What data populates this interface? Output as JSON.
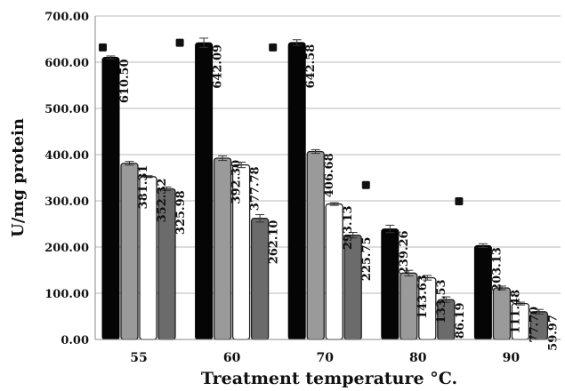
{
  "chart_data": {
    "type": "bar",
    "title": "",
    "xlabel": "Treatment temperature  °C.",
    "ylabel": "U/mg protein",
    "ylim": [
      0,
      700
    ],
    "yticks": [
      "0.00",
      "100.00",
      "200.00",
      "300.00",
      "400.00",
      "500.00",
      "600.00",
      "700.00"
    ],
    "grid": "horizontal",
    "legend": "none",
    "categories": [
      "55",
      "60",
      "70",
      "80",
      "90"
    ],
    "series": [
      {
        "values": [
          610.5,
          642.09,
          642.58,
          239.26,
          203.13
        ],
        "labels": [
          "610.50",
          "642.09",
          "642.58",
          "239.26",
          "203.13"
        ],
        "errors": [
          3,
          10,
          6,
          8,
          4
        ],
        "color": "#050505"
      },
      {
        "values": [
          381.31,
          392.3,
          406.68,
          143.63,
          111.48
        ],
        "labels": [
          "381.31",
          "392.30",
          "406.68",
          "143.63",
          "111.48"
        ],
        "errors": [
          4,
          5,
          4,
          6,
          4
        ],
        "color": "#9a9a9a"
      },
      {
        "values": [
          352.32,
          377.78,
          293.13,
          133.53,
          77.7
        ],
        "labels": [
          "352.32",
          "377.78",
          "293.13",
          "133.53",
          "77.70"
        ],
        "errors": [
          2,
          6,
          3,
          5,
          3
        ],
        "color": "#ffffff"
      },
      {
        "values": [
          325.98,
          262.1,
          225.75,
          86.19,
          59.97
        ],
        "labels": [
          "325.98",
          "262.10",
          "225.75",
          "86.19",
          "59.97"
        ],
        "errors": [
          4,
          8,
          6,
          6,
          5
        ],
        "color": "#6b6b6b"
      }
    ],
    "markers": [
      {
        "category": "55",
        "value": 633
      },
      {
        "category": "60",
        "value": 643
      },
      {
        "category": "70",
        "value": 633
      },
      {
        "category": "80",
        "value": 335
      },
      {
        "category": "90",
        "value": 300
      }
    ]
  }
}
